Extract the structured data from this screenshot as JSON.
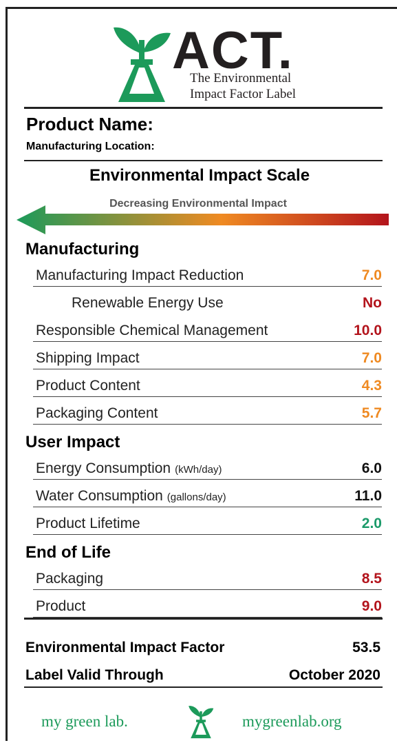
{
  "header": {
    "brand": "ACT.",
    "tagline": [
      "The Environmental",
      "Impact Factor Label"
    ]
  },
  "product_name": "Product Name:",
  "manufacturing_location": "Manufacturing Location:",
  "scale": {
    "title": "Environmental Impact Scale",
    "subtitle": "Decreasing Environmental Impact"
  },
  "sections": [
    {
      "title": "Manufacturing",
      "rows": [
        {
          "label": "Manufacturing Impact Reduction",
          "value": "7.0",
          "color": "#ef8a22"
        },
        {
          "label": "Renewable Energy Use",
          "value": "No",
          "color": "#b3141c",
          "indent": true
        },
        {
          "label": "Responsible Chemical Management",
          "value": "10.0",
          "color": "#b3141c"
        },
        {
          "label": "Shipping Impact",
          "value": "7.0",
          "color": "#ef8a22"
        },
        {
          "label": "Product Content",
          "value": "4.3",
          "color": "#ef8a22"
        },
        {
          "label": "Packaging Content",
          "value": "5.7",
          "color": "#ef8a22"
        }
      ]
    },
    {
      "title": "User Impact",
      "rows": [
        {
          "label": "Energy Consumption",
          "unit": "(kWh/day)",
          "value": "6.0",
          "color": "#111111"
        },
        {
          "label": "Water Consumption",
          "unit": "(gallons/day)",
          "value": "11.0",
          "color": "#111111"
        },
        {
          "label": "Product Lifetime",
          "value": "2.0",
          "color": "#1c9a6a"
        }
      ]
    },
    {
      "title": "End of Life",
      "rows": [
        {
          "label": "Packaging",
          "value": "8.5",
          "color": "#b3141c"
        },
        {
          "label": "Product",
          "value": "9.0",
          "color": "#b3141c"
        }
      ]
    }
  ],
  "totals": [
    {
      "label": "Environmental Impact Factor",
      "value": "53.5"
    },
    {
      "label": "Label Valid Through",
      "value": "October 2020"
    }
  ],
  "footer": {
    "left": "my green lab.",
    "right": "mygreenlab.org"
  }
}
